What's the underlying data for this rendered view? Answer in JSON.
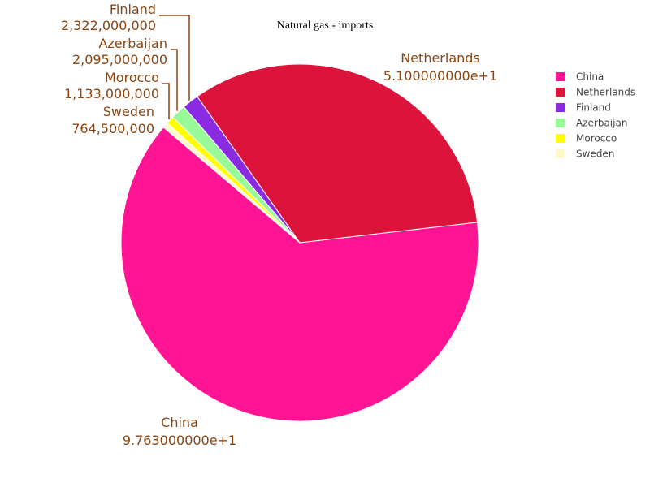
{
  "chart_data": {
    "type": "pie",
    "title": "Natural gas - imports",
    "categories": [
      "China",
      "Netherlands",
      "Finland",
      "Azerbaijan",
      "Morocco",
      "Sweden"
    ],
    "values": [
      97.63,
      51,
      2.322,
      2.095,
      1.133,
      0.7645
    ],
    "value_labels": [
      "9.763000000e+1",
      "5.100000000e+1",
      "2,322,000,000",
      "2,095,000,000",
      "1,133,000,000",
      "764,500,000"
    ],
    "colors": [
      "#ff1493",
      "#dc143c",
      "#8a2be2",
      "#98fb98",
      "#ffff00",
      "#fffacd"
    ],
    "legend": "top-right"
  }
}
